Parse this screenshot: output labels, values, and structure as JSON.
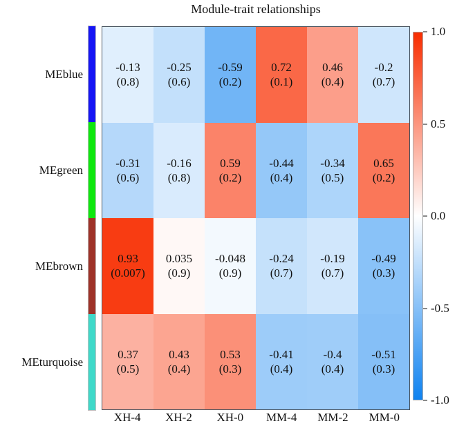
{
  "chart_data": {
    "type": "heatmap",
    "title": "Module-trait relationships",
    "rows": [
      "MEblue",
      "MEgreen",
      "MEbrown",
      "MEturquoise"
    ],
    "row_strip_colors": [
      "#1414f5",
      "#0de80d",
      "#9e3228",
      "#3fd9c9"
    ],
    "columns": [
      "XH-4",
      "XH-2",
      "XH-0",
      "MM-4",
      "MM-2",
      "MM-0"
    ],
    "values": [
      [
        -0.13,
        -0.25,
        -0.59,
        0.72,
        0.46,
        -0.2
      ],
      [
        -0.31,
        -0.16,
        0.59,
        -0.44,
        -0.34,
        0.65
      ],
      [
        0.93,
        0.035,
        -0.048,
        -0.24,
        -0.19,
        -0.49
      ],
      [
        0.37,
        0.43,
        0.53,
        -0.41,
        -0.4,
        -0.51
      ]
    ],
    "p_labels": [
      [
        "(0.8)",
        "(0.6)",
        "(0.2)",
        "(0.1)",
        "(0.4)",
        "(0.7)"
      ],
      [
        "(0.6)",
        "(0.8)",
        "(0.2)",
        "(0.4)",
        "(0.5)",
        "(0.2)"
      ],
      [
        "(0.007)",
        "(0.9)",
        "(0.9)",
        "(0.7)",
        "(0.7)",
        "(0.3)"
      ],
      [
        "(0.5)",
        "(0.4)",
        "(0.3)",
        "(0.4)",
        "(0.4)",
        "(0.3)"
      ]
    ],
    "value_range": [
      -1,
      1
    ],
    "grid": "off",
    "legend_position": "right",
    "colorbar": {
      "ticks": [
        "1.0",
        "0.5",
        "0.0",
        "-0.5",
        "-1.0"
      ],
      "tick_values": [
        1.0,
        0.5,
        0.0,
        -0.5,
        -1.0
      ],
      "max_color": "#f82d00",
      "mid_color": "#ffffff",
      "min_color": "#0f82f0"
    }
  }
}
